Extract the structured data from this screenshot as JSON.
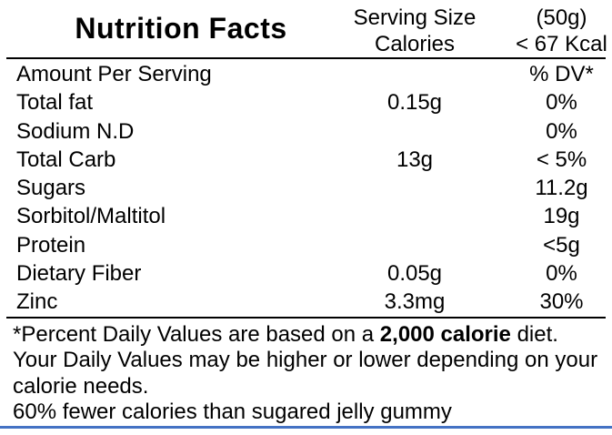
{
  "label": {
    "title": "Nutrition Facts",
    "header": {
      "serving_size_label": "Serving Size",
      "serving_size_value": "(50g)",
      "calories_label": "Calories",
      "calories_value": "< 67 Kcal"
    },
    "rows": [
      {
        "name": "Amount Per Serving",
        "amount": "",
        "dv": "% DV*"
      },
      {
        "name": "Total fat",
        "amount": "0.15g",
        "dv": "0%"
      },
      {
        "name": "Sodium N.D",
        "amount": "",
        "dv": "0%"
      },
      {
        "name": "Total Carb",
        "amount": "13g",
        "dv": "< 5%"
      },
      {
        "name": "Sugars",
        "amount": "",
        "dv": "11.2g"
      },
      {
        "name": "Sorbitol/Maltitol",
        "amount": "",
        "dv": "19g"
      },
      {
        "name": "Protein",
        "amount": "",
        "dv": "<5g"
      },
      {
        "name": "Dietary Fiber",
        "amount": "0.05g",
        "dv": "0%"
      },
      {
        "name": "Zinc",
        "amount": "3.3mg",
        "dv": "30%"
      }
    ],
    "footnote": {
      "line1_prefix": "*Percent Daily Values are based on a ",
      "line1_bold": "2,000 calorie",
      "line1_suffix": " diet.",
      "line2": "Your Daily Values may be higher or lower depending on your",
      "line3": "calorie needs.",
      "line4": "60% fewer calories than sugared jelly gummy"
    },
    "colors": {
      "text": "#000000",
      "divider": "#000000",
      "bottom_border": "#4472C4"
    }
  }
}
